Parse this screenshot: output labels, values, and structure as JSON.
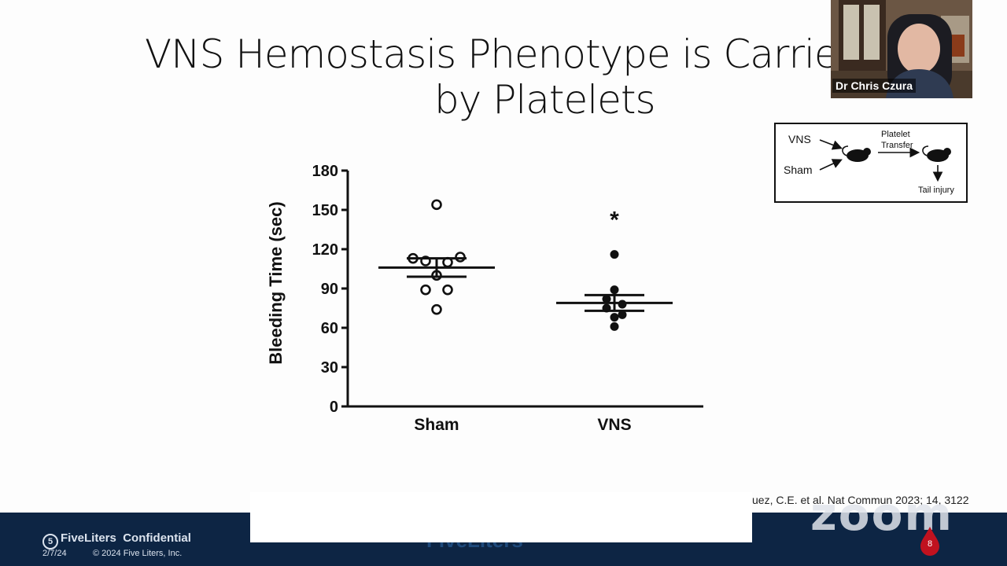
{
  "slide": {
    "title_line1": "VNS Hemostasis Phenotype is Carrie",
    "title_line2": "by Platelets",
    "citation": "uez, C.E. et al.  Nat Commun 2023; 14, 3122"
  },
  "schematic": {
    "vns_label": "VNS",
    "sham_label": "Sham",
    "transfer_line1": "Platelet",
    "transfer_line2": "Transfer",
    "injury_label": "Tail injury"
  },
  "chart_data": {
    "type": "scatter",
    "title": "",
    "xlabel": "",
    "ylabel": "Bleeding Time (sec)",
    "ylim": [
      0,
      180
    ],
    "yticks": [
      "0",
      "30",
      "60",
      "90",
      "120",
      "150",
      "180"
    ],
    "categories": [
      "Sham",
      "VNS"
    ],
    "series": [
      {
        "category": "Sham",
        "marker": "open-circle",
        "values": [
          154,
          113,
          111,
          110,
          114,
          100,
          89,
          89,
          74
        ],
        "mean": 106,
        "sem_low": 99,
        "sem_high": 113
      },
      {
        "category": "VNS",
        "marker": "filled-circle",
        "values": [
          116,
          89,
          82,
          78,
          75,
          70,
          68,
          61
        ],
        "mean": 79,
        "sem_low": 73,
        "sem_high": 85
      }
    ],
    "annotations": [
      {
        "text": "*",
        "category": "VNS",
        "y": 145
      }
    ]
  },
  "footer": {
    "brand": "FiveLiters",
    "confidential": "Confidential",
    "date": "2/7/24",
    "copyright": "© 2024 Five Liters, Inc.",
    "center_logo": "FiveLiters",
    "page_number": "8"
  },
  "zoom": {
    "watermark": "zoom",
    "participant_name": "Dr Chris Czura"
  },
  "colors": {
    "footer_bg": "#0d2544",
    "drop_red": "#c0121f"
  }
}
